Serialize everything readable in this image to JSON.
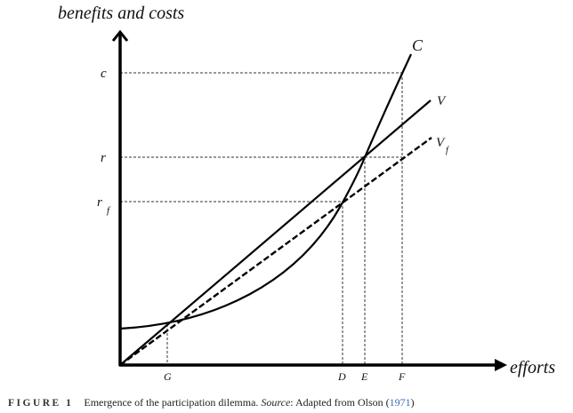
{
  "diagram": {
    "y_axis_label": "benefits and costs",
    "x_axis_label": "efforts",
    "y_ticks": {
      "c": "c",
      "r": "r",
      "rf_main": "r",
      "rf_sub": "f"
    },
    "x_ticks": {
      "G": "G",
      "D": "D",
      "E": "E",
      "F": "F"
    },
    "curves": {
      "C": "C",
      "V": "V",
      "Vf_main": "V",
      "Vf_sub": "f"
    }
  },
  "caption": {
    "figure_label": "FIGURE 1",
    "text": "Emergence of the participation dilemma. ",
    "source_label": "Source",
    "source_text": ": Adapted from Olson (",
    "citation_year": "1971",
    "close": ")"
  },
  "colors": {
    "line": "#000000",
    "citation": "#3a6fb5"
  }
}
